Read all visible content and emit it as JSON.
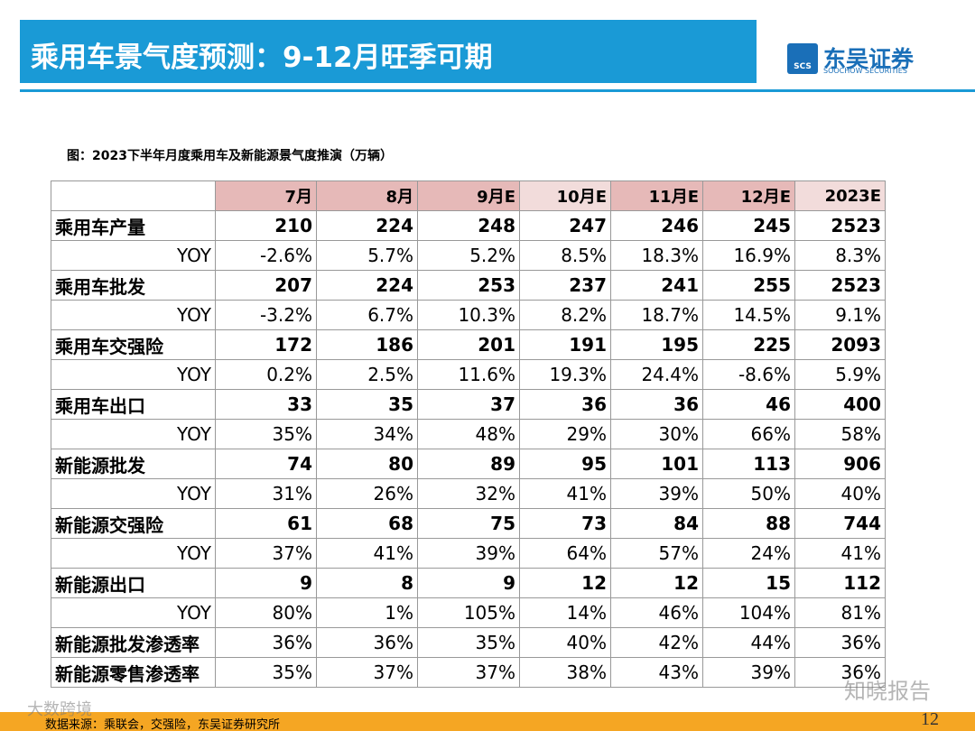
{
  "header": {
    "title": "乘用车景气度预测：9-12月旺季可期",
    "logo_mark": "SCS",
    "logo_name": "东吴证券",
    "logo_sub": "SOOCHOW SECURITIES"
  },
  "caption": "图：2023下半年月度乘用车及新能源景气度推演（万辆）",
  "table": {
    "columns": [
      "7月",
      "8月",
      "9月E",
      "10月E",
      "11月E",
      "12月E",
      "2023E"
    ],
    "rows": [
      [
        "乘用车产量",
        "210",
        "224",
        "248",
        "247",
        "246",
        "245",
        "2523"
      ],
      [
        "YOY",
        "-2.6%",
        "5.7%",
        "5.2%",
        "8.5%",
        "18.3%",
        "16.9%",
        "8.3%"
      ],
      [
        "乘用车批发",
        "207",
        "224",
        "253",
        "237",
        "241",
        "255",
        "2523"
      ],
      [
        "YOY",
        "-3.2%",
        "6.7%",
        "10.3%",
        "8.2%",
        "18.7%",
        "14.5%",
        "9.1%"
      ],
      [
        "乘用车交强险",
        "172",
        "186",
        "201",
        "191",
        "195",
        "225",
        "2093"
      ],
      [
        "YOY",
        "0.2%",
        "2.5%",
        "11.6%",
        "19.3%",
        "24.4%",
        "-8.6%",
        "5.9%"
      ],
      [
        "乘用车出口",
        "33",
        "35",
        "37",
        "36",
        "36",
        "46",
        "400"
      ],
      [
        "YOY",
        "35%",
        "34%",
        "48%",
        "29%",
        "30%",
        "66%",
        "58%"
      ],
      [
        "新能源批发",
        "74",
        "80",
        "89",
        "95",
        "101",
        "113",
        "906"
      ],
      [
        "YOY",
        "31%",
        "26%",
        "32%",
        "41%",
        "39%",
        "50%",
        "40%"
      ],
      [
        "新能源交强险",
        "61",
        "68",
        "75",
        "73",
        "84",
        "88",
        "744"
      ],
      [
        "YOY",
        "37%",
        "41%",
        "39%",
        "64%",
        "57%",
        "24%",
        "41%"
      ],
      [
        "新能源出口",
        "9",
        "8",
        "9",
        "12",
        "12",
        "15",
        "112"
      ],
      [
        "YOY",
        "80%",
        "1%",
        "105%",
        "14%",
        "46%",
        "104%",
        "81%"
      ],
      [
        "新能源批发渗透率",
        "36%",
        "36%",
        "35%",
        "40%",
        "42%",
        "44%",
        "36%"
      ],
      [
        "新能源零售渗透率",
        "35%",
        "37%",
        "37%",
        "38%",
        "43%",
        "39%",
        "36%"
      ]
    ]
  },
  "footer": {
    "source": "数据来源：乘联会，交强险，东吴证券研究所",
    "page": "12"
  },
  "watermarks": [
    "大数跨境",
    "知晓报告"
  ]
}
